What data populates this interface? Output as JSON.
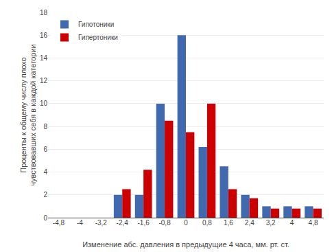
{
  "chart_data": {
    "type": "bar",
    "categories": [
      "-4,8",
      "-4",
      "-3,2",
      "-2,4",
      "-1,6",
      "-0,8",
      "0",
      "0,8",
      "1,6",
      "2,4",
      "3,2",
      "4",
      "4,8"
    ],
    "series": [
      {
        "name": "Гипотоники",
        "color": "#4169B0",
        "values": [
          0,
          0,
          0,
          2.0,
          2.0,
          10.0,
          16.0,
          6.2,
          4.5,
          2.0,
          1.0,
          1.0,
          1.0
        ]
      },
      {
        "name": "Гипертоники",
        "color": "#CC0000",
        "values": [
          0,
          0,
          0,
          2.5,
          4.2,
          8.5,
          7.5,
          10.0,
          2.5,
          1.7,
          0.8,
          0.8,
          0.8
        ]
      }
    ],
    "xlabel": "Изменение абс. давления в предыдущие 4 часа, мм. рт. ст.",
    "ylabel": "Проценты к общему числу плохо\nчувствовавших себя в каждой категории",
    "ylim": [
      0,
      18
    ],
    "yticks": [
      0,
      2,
      4,
      6,
      8,
      10,
      12,
      14,
      16,
      18
    ],
    "grid": true,
    "legend": "upper left"
  }
}
